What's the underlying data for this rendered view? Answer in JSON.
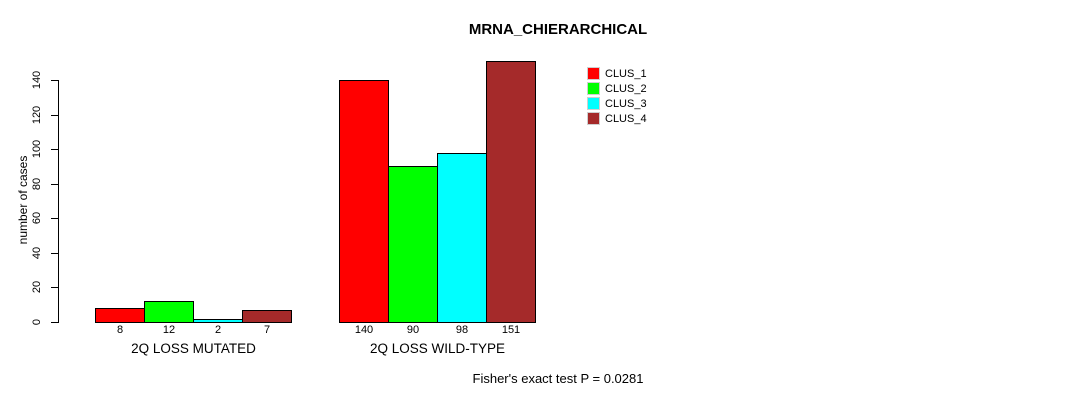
{
  "window": {
    "background": "#ffffff"
  },
  "chart_data": {
    "type": "bar",
    "title": "MRNA_CHIERARCHICAL",
    "ylabel": "number of cases",
    "xlabel": "",
    "categories": [
      "2Q LOSS MUTATED",
      "2Q LOSS WILD-TYPE"
    ],
    "series": [
      {
        "name": "CLUS_1",
        "color": "#ff0000",
        "values": [
          8,
          140
        ]
      },
      {
        "name": "CLUS_2",
        "color": "#00ff00",
        "values": [
          12,
          90
        ]
      },
      {
        "name": "CLUS_3",
        "color": "#00ffff",
        "values": [
          2,
          98
        ]
      },
      {
        "name": "CLUS_4",
        "color": "#a52a2a",
        "values": [
          7,
          151
        ]
      }
    ],
    "yticks": [
      0,
      20,
      40,
      60,
      80,
      100,
      120,
      140
    ],
    "ylim": [
      0,
      140
    ],
    "grid": false,
    "bar_value_labels_shown": true,
    "legend_position": "top-right",
    "annotation": "Fisher's exact test P = 0.0281",
    "axis_color": "#000000"
  }
}
